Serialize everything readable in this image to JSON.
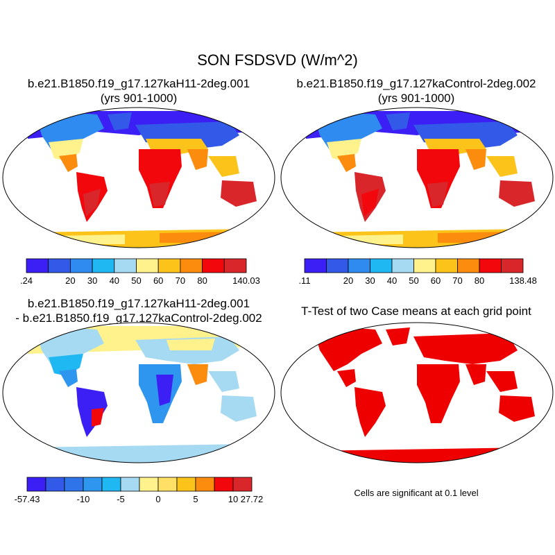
{
  "figure": {
    "title": "SON FSDSVD (W/m^2)",
    "note": "Cells are significant at 0.1 level"
  },
  "panels": {
    "case1": {
      "title_line1": "b.e21.B1850.f19_g17.127kaH11-2deg.001",
      "title_line2": "(yrs 901-1000)"
    },
    "case2": {
      "title_line1": "b.e21.B1850.f19_g17.127kaControl-2deg.002",
      "title_line2": "(yrs 901-1000)"
    },
    "diff": {
      "title_line1": "b.e21.B1850.f19_g17.127kaH11-2deg.001",
      "title_line2": "- b.e21.B1850.f19_g17.127kaControl-2deg.002"
    },
    "ttest": {
      "title_line1": "T-Test of two Case means at each grid point"
    }
  },
  "colorbars": {
    "case1": {
      "colors": [
        "#3b1ff5",
        "#3359e8",
        "#2f8bf0",
        "#1fb8f2",
        "#a6d9f2",
        "#fff28c",
        "#fcc31a",
        "#fc8c0d",
        "#f2070d",
        "#d9262b"
      ],
      "labels": [
        ".24",
        "",
        "20",
        "30",
        "40",
        "50",
        "60",
        "70",
        "80",
        "",
        "140.03"
      ]
    },
    "case2": {
      "colors": [
        "#3b1ff5",
        "#3359e8",
        "#2f8bf0",
        "#1fb8f2",
        "#a6d9f2",
        "#fff28c",
        "#fcc31a",
        "#fc8c0d",
        "#f2070d",
        "#d9262b"
      ],
      "labels": [
        ".11",
        "",
        "20",
        "30",
        "40",
        "50",
        "60",
        "70",
        "80",
        "",
        "138.48"
      ]
    },
    "diff": {
      "colors": [
        "#3b1ff5",
        "#3359e8",
        "#2f74e8",
        "#2f96f0",
        "#1fb8f2",
        "#a6d9f2",
        "#fff28c",
        "#ffe066",
        "#fcc31a",
        "#fc8c0d",
        "#f2070d",
        "#d9262b"
      ],
      "labels": [
        "-57.43",
        "",
        "",
        "-10",
        "",
        "-5",
        "",
        "0",
        "",
        "5",
        "",
        "10",
        "27.72"
      ]
    }
  },
  "map_colors": {
    "ocean": "#ffffff",
    "significant": "#ee0000"
  }
}
